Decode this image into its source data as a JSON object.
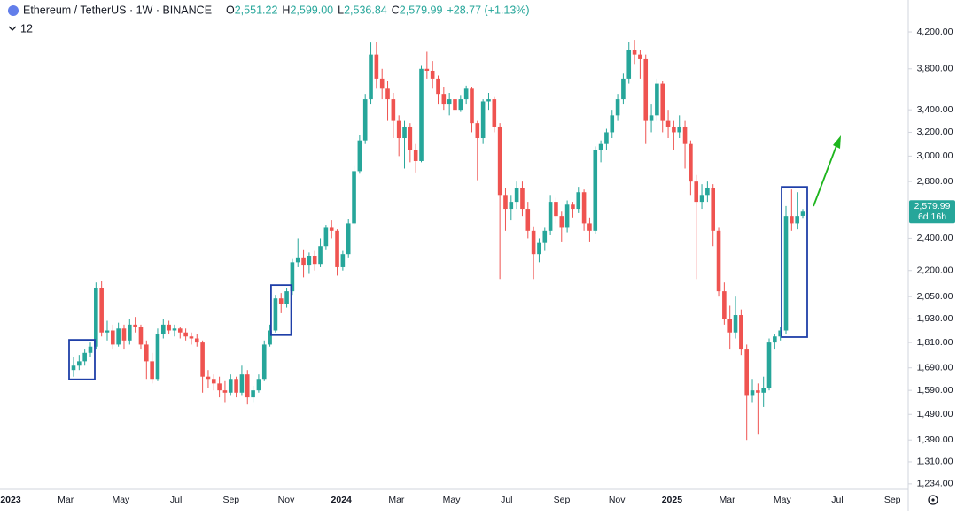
{
  "header": {
    "symbol": "Ethereum / TetherUS · 1W · BINANCE",
    "ohlc": [
      {
        "key": "O",
        "value": "2,551.22"
      },
      {
        "key": "H",
        "value": "2,599.00"
      },
      {
        "key": "L",
        "value": "2,536.84"
      },
      {
        "key": "C",
        "value": "2,579.99"
      }
    ],
    "change": "+28.77 (+1.13%)",
    "indicators": "12"
  },
  "chart_data": {
    "type": "candlestick",
    "log_scale": true,
    "up_color": "#26a69a",
    "down_color": "#ef5350",
    "ylim": [
      1216,
      4579
    ],
    "yticks": [
      {
        "value": 1234,
        "label": "1,234.00"
      },
      {
        "value": 1310,
        "label": "1,310.00"
      },
      {
        "value": 1390,
        "label": "1,390.00"
      },
      {
        "value": 1490,
        "label": "1,490.00"
      },
      {
        "value": 1590,
        "label": "1,590.00"
      },
      {
        "value": 1690,
        "label": "1,690.00"
      },
      {
        "value": 1810,
        "label": "1,810.00"
      },
      {
        "value": 1930,
        "label": "1,930.00"
      },
      {
        "value": 2050,
        "label": "2,050.00"
      },
      {
        "value": 2200,
        "label": "2,200.00"
      },
      {
        "value": 2400,
        "label": "2,400.00"
      },
      {
        "value": 2800,
        "label": "2,800.00"
      },
      {
        "value": 3000,
        "label": "3,000.00"
      },
      {
        "value": 3200,
        "label": "3,200.00"
      },
      {
        "value": 3400,
        "label": "3,400.00"
      },
      {
        "value": 3800,
        "label": "3,800.00"
      },
      {
        "value": 4200,
        "label": "4,200.00"
      }
    ],
    "xlabels": [
      "2023",
      "Mar",
      "May",
      "Jul",
      "Sep",
      "Nov",
      "2024",
      "Mar",
      "May",
      "Jul",
      "Sep",
      "Nov",
      "2025",
      "Mar",
      "May",
      "Jul",
      "Sep"
    ],
    "last_price": {
      "value": 2579.99,
      "label": "2,579.99"
    },
    "countdown": "6d 16h",
    "candles": [
      [
        1680,
        1740,
        1650,
        1700
      ],
      [
        1700,
        1750,
        1680,
        1720
      ],
      [
        1720,
        1780,
        1700,
        1760
      ],
      [
        1760,
        1810,
        1740,
        1790
      ],
      [
        1790,
        2130,
        1780,
        2100
      ],
      [
        2100,
        2140,
        1840,
        1860
      ],
      [
        1860,
        1920,
        1820,
        1870
      ],
      [
        1870,
        1900,
        1780,
        1800
      ],
      [
        1800,
        1910,
        1790,
        1880
      ],
      [
        1880,
        1900,
        1780,
        1820
      ],
      [
        1820,
        1930,
        1800,
        1900
      ],
      [
        1900,
        1940,
        1860,
        1890
      ],
      [
        1890,
        1900,
        1780,
        1800
      ],
      [
        1800,
        1820,
        1640,
        1720
      ],
      [
        1720,
        1760,
        1620,
        1640
      ],
      [
        1640,
        1880,
        1630,
        1850
      ],
      [
        1850,
        1930,
        1830,
        1900
      ],
      [
        1900,
        1920,
        1850,
        1870
      ],
      [
        1870,
        1900,
        1840,
        1880
      ],
      [
        1880,
        1890,
        1830,
        1860
      ],
      [
        1860,
        1880,
        1820,
        1840
      ],
      [
        1840,
        1860,
        1800,
        1830
      ],
      [
        1830,
        1850,
        1790,
        1810
      ],
      [
        1810,
        1820,
        1580,
        1650
      ],
      [
        1650,
        1680,
        1600,
        1640
      ],
      [
        1640,
        1660,
        1590,
        1620
      ],
      [
        1620,
        1650,
        1560,
        1590
      ],
      [
        1590,
        1630,
        1540,
        1580
      ],
      [
        1580,
        1660,
        1570,
        1640
      ],
      [
        1640,
        1650,
        1560,
        1580
      ],
      [
        1580,
        1700,
        1570,
        1660
      ],
      [
        1660,
        1680,
        1530,
        1560
      ],
      [
        1560,
        1610,
        1540,
        1590
      ],
      [
        1590,
        1660,
        1580,
        1640
      ],
      [
        1640,
        1820,
        1630,
        1800
      ],
      [
        1800,
        1900,
        1790,
        1870
      ],
      [
        1870,
        2060,
        1860,
        2040
      ],
      [
        2040,
        2070,
        1960,
        2010
      ],
      [
        2010,
        2100,
        1990,
        2080
      ],
      [
        2080,
        2270,
        2060,
        2250
      ],
      [
        2250,
        2400,
        2220,
        2280
      ],
      [
        2280,
        2330,
        2160,
        2230
      ],
      [
        2230,
        2310,
        2180,
        2290
      ],
      [
        2290,
        2320,
        2200,
        2240
      ],
      [
        2240,
        2400,
        2220,
        2350
      ],
      [
        2350,
        2490,
        2330,
        2470
      ],
      [
        2470,
        2520,
        2400,
        2450
      ],
      [
        2450,
        2460,
        2170,
        2220
      ],
      [
        2220,
        2320,
        2200,
        2300
      ],
      [
        2300,
        2530,
        2280,
        2500
      ],
      [
        2500,
        2920,
        2490,
        2880
      ],
      [
        2880,
        3180,
        2860,
        3130
      ],
      [
        3130,
        3550,
        3100,
        3500
      ],
      [
        3500,
        4080,
        3450,
        3950
      ],
      [
        3950,
        4090,
        3600,
        3700
      ],
      [
        3700,
        3800,
        3500,
        3600
      ],
      [
        3600,
        3680,
        3300,
        3500
      ],
      [
        3500,
        3560,
        3150,
        3300
      ],
      [
        3300,
        3350,
        3000,
        3150
      ],
      [
        3150,
        3300,
        2900,
        3250
      ],
      [
        3250,
        3280,
        2950,
        3050
      ],
      [
        3050,
        3100,
        2870,
        2960
      ],
      [
        2960,
        3830,
        2950,
        3800
      ],
      [
        3800,
        3980,
        3700,
        3780
      ],
      [
        3780,
        3880,
        3600,
        3700
      ],
      [
        3700,
        3730,
        3450,
        3550
      ],
      [
        3550,
        3620,
        3400,
        3450
      ],
      [
        3450,
        3560,
        3350,
        3500
      ],
      [
        3500,
        3560,
        3350,
        3400
      ],
      [
        3400,
        3540,
        3380,
        3500
      ],
      [
        3500,
        3630,
        3450,
        3600
      ],
      [
        3600,
        3620,
        3200,
        3280
      ],
      [
        3280,
        3300,
        2810,
        3150
      ],
      [
        3150,
        3500,
        3100,
        3480
      ],
      [
        3480,
        3560,
        3400,
        3500
      ],
      [
        3500,
        3520,
        3200,
        3250
      ],
      [
        3250,
        3280,
        2150,
        2700
      ],
      [
        2700,
        2750,
        2450,
        2600
      ],
      [
        2600,
        2700,
        2520,
        2650
      ],
      [
        2650,
        2800,
        2600,
        2750
      ],
      [
        2750,
        2800,
        2550,
        2600
      ],
      [
        2600,
        2650,
        2400,
        2450
      ],
      [
        2450,
        2480,
        2150,
        2300
      ],
      [
        2300,
        2400,
        2250,
        2370
      ],
      [
        2370,
        2470,
        2320,
        2450
      ],
      [
        2450,
        2700,
        2420,
        2650
      ],
      [
        2650,
        2680,
        2500,
        2550
      ],
      [
        2550,
        2580,
        2380,
        2470
      ],
      [
        2470,
        2660,
        2440,
        2630
      ],
      [
        2630,
        2650,
        2540,
        2600
      ],
      [
        2600,
        2760,
        2570,
        2720
      ],
      [
        2720,
        2740,
        2450,
        2500
      ],
      [
        2500,
        2540,
        2380,
        2450
      ],
      [
        2450,
        3080,
        2430,
        3050
      ],
      [
        3050,
        3130,
        2950,
        3100
      ],
      [
        3100,
        3230,
        3050,
        3200
      ],
      [
        3200,
        3400,
        3150,
        3350
      ],
      [
        3350,
        3550,
        3300,
        3500
      ],
      [
        3500,
        3750,
        3450,
        3700
      ],
      [
        3700,
        4090,
        3650,
        4000
      ],
      [
        4000,
        4110,
        3850,
        3950
      ],
      [
        3950,
        4000,
        3700,
        3900
      ],
      [
        3900,
        3950,
        3100,
        3300
      ],
      [
        3300,
        3450,
        3200,
        3350
      ],
      [
        3350,
        3700,
        3300,
        3650
      ],
      [
        3650,
        3680,
        3200,
        3300
      ],
      [
        3300,
        3400,
        3150,
        3250
      ],
      [
        3250,
        3300,
        3050,
        3200
      ],
      [
        3200,
        3350,
        3150,
        3250
      ],
      [
        3250,
        3300,
        2900,
        3100
      ],
      [
        3100,
        3130,
        2700,
        2800
      ],
      [
        2800,
        2850,
        2150,
        2650
      ],
      [
        2650,
        2780,
        2600,
        2700
      ],
      [
        2700,
        2800,
        2650,
        2750
      ],
      [
        2750,
        2780,
        2350,
        2450
      ],
      [
        2450,
        2470,
        2050,
        2080
      ],
      [
        2080,
        2130,
        1900,
        1930
      ],
      [
        1930,
        2000,
        1780,
        1860
      ],
      [
        1860,
        2050,
        1830,
        1950
      ],
      [
        1950,
        1980,
        1750,
        1780
      ],
      [
        1780,
        1800,
        1390,
        1570
      ],
      [
        1570,
        1640,
        1540,
        1590
      ],
      [
        1590,
        1620,
        1410,
        1580
      ],
      [
        1580,
        1650,
        1520,
        1600
      ],
      [
        1600,
        1830,
        1590,
        1810
      ],
      [
        1810,
        1850,
        1780,
        1840
      ],
      [
        1840,
        1890,
        1820,
        1870
      ],
      [
        1870,
        2620,
        1850,
        2550
      ],
      [
        2550,
        2740,
        2450,
        2500
      ],
      [
        2500,
        2720,
        2460,
        2550
      ],
      [
        2551.22,
        2599,
        2536.84,
        2579.99
      ]
    ]
  }
}
